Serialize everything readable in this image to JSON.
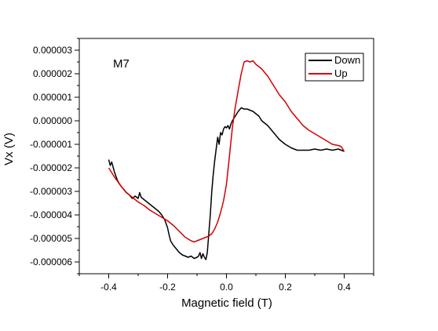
{
  "chart_data": {
    "type": "line",
    "title": "",
    "annotation": "M7",
    "xlabel": "Magnetic field (T)",
    "ylabel": "Vx (V)",
    "xlim": [
      -0.5,
      0.5
    ],
    "ylim": [
      -6.5e-06,
      3.5e-06
    ],
    "x_ticks": [
      -0.4,
      -0.2,
      0.0,
      0.2,
      0.4
    ],
    "x_tick_labels": [
      "-0.4",
      "-0.2",
      "0.0",
      "0.2",
      "0.4"
    ],
    "y_ticks": [
      3e-06,
      2e-06,
      1e-06,
      0.0,
      -1e-06,
      -2e-06,
      -3e-06,
      -4e-06,
      -5e-06,
      -6e-06
    ],
    "y_tick_labels": [
      "0.000003",
      "0.000002",
      "0.000001",
      "0.000000",
      "-0.000001",
      "-0.000002",
      "-0.000003",
      "-0.000004",
      "-0.000005",
      "-0.000006"
    ],
    "grid": false,
    "legend_position": "top-right",
    "series": [
      {
        "name": "Down",
        "color": "#000000",
        "x": [
          -0.4,
          -0.395,
          -0.39,
          -0.38,
          -0.37,
          -0.36,
          -0.35,
          -0.34,
          -0.33,
          -0.32,
          -0.31,
          -0.3,
          -0.295,
          -0.29,
          -0.28,
          -0.27,
          -0.26,
          -0.25,
          -0.24,
          -0.23,
          -0.22,
          -0.21,
          -0.2,
          -0.195,
          -0.19,
          -0.18,
          -0.17,
          -0.16,
          -0.15,
          -0.14,
          -0.13,
          -0.12,
          -0.11,
          -0.1,
          -0.095,
          -0.09,
          -0.085,
          -0.08,
          -0.075,
          -0.07,
          -0.065,
          -0.06,
          -0.055,
          -0.05,
          -0.045,
          -0.04,
          -0.035,
          -0.03,
          -0.025,
          -0.02,
          -0.015,
          -0.01,
          -0.005,
          0.0,
          0.005,
          0.01,
          0.015,
          0.02,
          0.03,
          0.04,
          0.05,
          0.06,
          0.07,
          0.08,
          0.09,
          0.1,
          0.11,
          0.12,
          0.14,
          0.16,
          0.18,
          0.2,
          0.22,
          0.24,
          0.26,
          0.28,
          0.3,
          0.32,
          0.34,
          0.36,
          0.38,
          0.4
        ],
        "y": [
          -1.65e-06,
          -1.9e-06,
          -1.75e-06,
          -2.2e-06,
          -2.55e-06,
          -2.75e-06,
          -2.9e-06,
          -3.05e-06,
          -3.15e-06,
          -3.3e-06,
          -3.2e-06,
          -3.3e-06,
          -3.05e-06,
          -3.25e-06,
          -3.35e-06,
          -3.45e-06,
          -3.55e-06,
          -3.65e-06,
          -3.75e-06,
          -3.85e-06,
          -4e-06,
          -4.2e-06,
          -4.55e-06,
          -4.85e-06,
          -5.1e-06,
          -5.3e-06,
          -5.45e-06,
          -5.6e-06,
          -5.7e-06,
          -5.75e-06,
          -5.8e-06,
          -5.75e-06,
          -5.85e-06,
          -5.8e-06,
          -5.75e-06,
          -5.6e-06,
          -5.85e-06,
          -5.65e-06,
          -5.8e-06,
          -5.9e-06,
          -5.6e-06,
          -4.8e-06,
          -4e-06,
          -3e-06,
          -2.3e-06,
          -1.7e-06,
          -1.2e-06,
          -7e-07,
          -1e-06,
          -5e-07,
          -6e-07,
          -3.5e-07,
          -2.5e-07,
          -3e-07,
          -2e-07,
          -3.5e-07,
          -1.5e-07,
          0.0,
          2e-07,
          4e-07,
          5.5e-07,
          5e-07,
          5e-07,
          4.5e-07,
          4e-07,
          3e-07,
          2e-07,
          0.0,
          -2e-07,
          -5e-07,
          -8e-07,
          -1e-06,
          -1.15e-06,
          -1.25e-06,
          -1.25e-06,
          -1.25e-06,
          -1.2e-06,
          -1.25e-06,
          -1.2e-06,
          -1.25e-06,
          -1.2e-06,
          -1.3e-06
        ]
      },
      {
        "name": "Up",
        "color": "#d40000",
        "x": [
          -0.4,
          -0.38,
          -0.36,
          -0.34,
          -0.32,
          -0.3,
          -0.28,
          -0.26,
          -0.24,
          -0.22,
          -0.2,
          -0.18,
          -0.16,
          -0.14,
          -0.12,
          -0.11,
          -0.1,
          -0.09,
          -0.08,
          -0.07,
          -0.06,
          -0.05,
          -0.04,
          -0.03,
          -0.02,
          -0.01,
          0.0,
          0.01,
          0.02,
          0.03,
          0.04,
          0.05,
          0.06,
          0.07,
          0.08,
          0.09,
          0.1,
          0.11,
          0.12,
          0.14,
          0.16,
          0.18,
          0.2,
          0.22,
          0.24,
          0.26,
          0.28,
          0.3,
          0.32,
          0.34,
          0.36,
          0.38,
          0.39,
          0.4
        ],
        "y": [
          -2e-06,
          -2.4e-06,
          -2.75e-06,
          -3.05e-06,
          -3.25e-06,
          -3.45e-06,
          -3.6e-06,
          -3.8e-06,
          -3.95e-06,
          -4.1e-06,
          -4.25e-06,
          -4.45e-06,
          -4.7e-06,
          -4.95e-06,
          -5.1e-06,
          -5.15e-06,
          -5.1e-06,
          -5.05e-06,
          -5e-06,
          -4.95e-06,
          -4.9e-06,
          -4.8e-06,
          -4.6e-06,
          -4.3e-06,
          -3.9e-06,
          -3.4e-06,
          -2.7e-06,
          -1.5e-06,
          -3e-07,
          6e-07,
          1.3e-06,
          2e-06,
          2.5e-06,
          2.55e-06,
          2.5e-06,
          2.55e-06,
          2.4e-06,
          2.3e-06,
          2.2e-06,
          1.9e-06,
          1.5e-06,
          1.1e-06,
          8e-07,
          4e-07,
          1e-07,
          -2e-07,
          -4e-07,
          -5.5e-07,
          -7e-07,
          -8.5e-07,
          -1e-06,
          -1.05e-06,
          -1.1e-06,
          -1.3e-06
        ]
      }
    ]
  }
}
